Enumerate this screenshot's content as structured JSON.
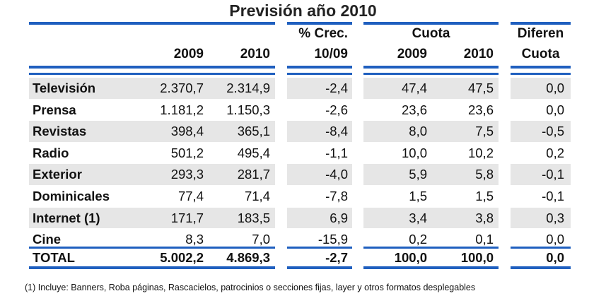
{
  "title": "Previsión año 2010",
  "headers": {
    "y2009": "2009",
    "y2010": "2010",
    "crec_line1": "% Crec.",
    "crec_line2": "10/09",
    "cuota_label": "Cuota",
    "cuota_2009": "2009",
    "cuota_2010": "2010",
    "dif_line1": "Diferen",
    "dif_line2": "Cuota"
  },
  "rows": [
    {
      "medio": "Televisión",
      "v2009": "2.370,7",
      "v2010": "2.314,9",
      "crec": "-2,4",
      "c2009": "47,4",
      "c2010": "47,5",
      "dif": "0,0"
    },
    {
      "medio": "Prensa",
      "v2009": "1.181,2",
      "v2010": "1.150,3",
      "crec": "-2,6",
      "c2009": "23,6",
      "c2010": "23,6",
      "dif": "0,0"
    },
    {
      "medio": "Revistas",
      "v2009": "398,4",
      "v2010": "365,1",
      "crec": "-8,4",
      "c2009": "8,0",
      "c2010": "7,5",
      "dif": "-0,5"
    },
    {
      "medio": "Radio",
      "v2009": "501,2",
      "v2010": "495,4",
      "crec": "-1,1",
      "c2009": "10,0",
      "c2010": "10,2",
      "dif": "0,2"
    },
    {
      "medio": "Exterior",
      "v2009": "293,3",
      "v2010": "281,7",
      "crec": "-4,0",
      "c2009": "5,9",
      "c2010": "5,8",
      "dif": "-0,1"
    },
    {
      "medio": "Dominicales",
      "v2009": "77,4",
      "v2010": "71,4",
      "crec": "-7,8",
      "c2009": "1,5",
      "c2010": "1,5",
      "dif": "-0,1"
    },
    {
      "medio": "Internet (1)",
      "v2009": "171,7",
      "v2010": "183,5",
      "crec": "6,9",
      "c2009": "3,4",
      "c2010": "3,8",
      "dif": "0,3"
    },
    {
      "medio": "Cine",
      "v2009": "8,3",
      "v2010": "7,0",
      "crec": "-15,9",
      "c2009": "0,2",
      "c2010": "0,1",
      "dif": "0,0"
    }
  ],
  "total": {
    "medio": "TOTAL",
    "v2009": "5.002,2",
    "v2010": "4.869,3",
    "crec": "-2,7",
    "c2009": "100,0",
    "c2010": "100,0",
    "dif": "0,0"
  },
  "footnote": "(1) Incluye: Banners, Roba páginas, Rascacielos, patrocinios o secciones fijas, layer y otros formatos desplegables",
  "colors": {
    "rule": "#1f5fbf",
    "shade": "#e6e6e6"
  }
}
